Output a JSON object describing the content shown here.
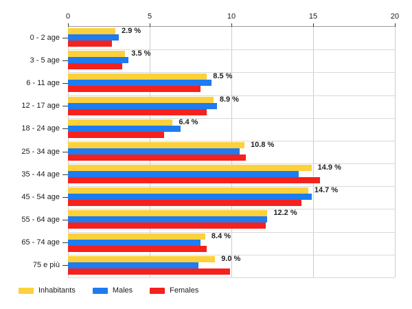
{
  "chart_data": {
    "type": "bar",
    "orientation": "horizontal",
    "title": "",
    "xlabel": "",
    "ylabel": "",
    "xlim": [
      0,
      20
    ],
    "x_ticks": [
      "0",
      "5",
      "10",
      "15",
      "20"
    ],
    "axis_position": "top",
    "grid": true,
    "legend_position": "bottom-left",
    "categories": [
      "0 - 2 age",
      "3 - 5 age",
      "6 - 11 age",
      "12 - 17 age",
      "18 - 24 age",
      "25 - 34 age",
      "35 - 44 age",
      "45 - 54 age",
      "55 - 64 age",
      "65 - 74 age",
      "75 e più"
    ],
    "series": [
      {
        "name": "Inhabitants",
        "color": "#FCD13B",
        "values": [
          2.9,
          3.5,
          8.5,
          8.9,
          6.4,
          10.8,
          14.9,
          14.7,
          12.2,
          8.4,
          9.0
        ]
      },
      {
        "name": "Males",
        "color": "#1E7BF0",
        "values": [
          3.1,
          3.7,
          8.8,
          9.1,
          6.9,
          10.5,
          14.1,
          14.9,
          12.2,
          8.1,
          8.0
        ]
      },
      {
        "name": "Females",
        "color": "#F5211D",
        "values": [
          2.7,
          3.3,
          8.1,
          8.5,
          5.9,
          10.9,
          15.4,
          14.3,
          12.1,
          8.5,
          9.9
        ]
      }
    ],
    "bar_labels": [
      "2.9 %",
      "3.5 %",
      "8.5 %",
      "8.9 %",
      "6.4 %",
      "10.8 %",
      "14.9 %",
      "14.7 %",
      "12.2 %",
      "8.4 %",
      "9.0 %"
    ]
  }
}
